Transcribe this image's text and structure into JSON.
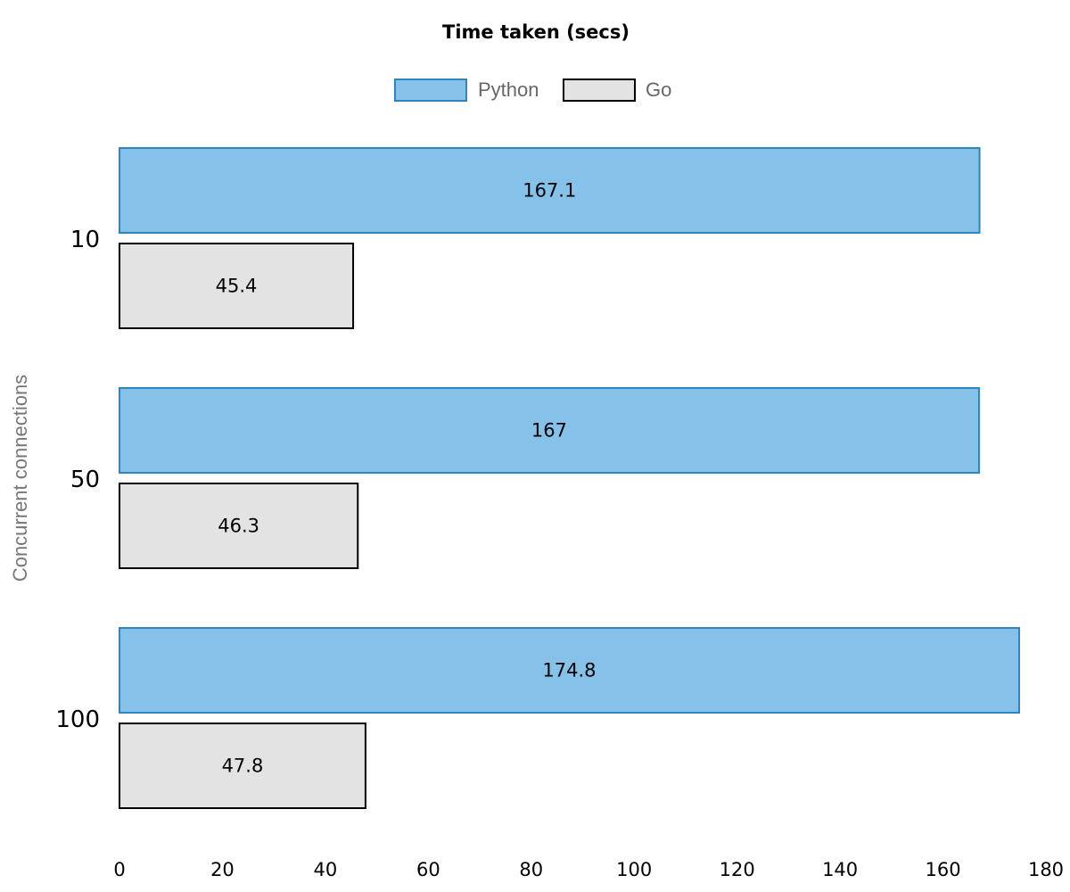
{
  "chart_data": {
    "type": "bar",
    "orientation": "horizontal",
    "title": "Time taken (secs)",
    "ylabel": "Concurrent connections",
    "xlabel": "",
    "categories": [
      "10",
      "50",
      "100"
    ],
    "series": [
      {
        "name": "Python",
        "values": [
          167.1,
          167,
          174.8
        ],
        "labels": [
          "167.1",
          "167",
          "174.8"
        ],
        "color": "#85c1e9",
        "stroke": "#2e86c1"
      },
      {
        "name": "Go",
        "values": [
          45.4,
          46.3,
          47.8
        ],
        "labels": [
          "45.4",
          "46.3",
          "47.8"
        ],
        "color": "#e3e3e3",
        "stroke": "#000000"
      }
    ],
    "xlim": [
      0,
      180
    ],
    "x_ticks": [
      "0",
      "20",
      "40",
      "60",
      "80",
      "100",
      "120",
      "140",
      "160",
      "180"
    ],
    "grid": false,
    "legend_position": "top-center"
  }
}
